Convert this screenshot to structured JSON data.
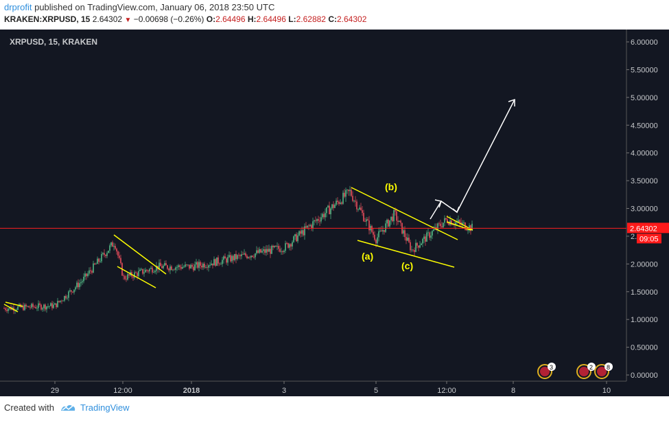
{
  "header": {
    "author": "drprofit",
    "published_text": "published on TradingView.com, January 06, 2018 23:50 UTC",
    "symbol": "KRAKEN:XRPUSD, 15",
    "last": "2.64302",
    "change": "−0.00698 (−0.26%)",
    "o_label": "O:",
    "o": "2.64496",
    "h_label": "H:",
    "h": "2.64496",
    "l_label": "L:",
    "l": "2.62882",
    "c_label": "C:",
    "c": "2.64302"
  },
  "chart_data": {
    "type": "candlestick",
    "title": "XRPUSD, 15, KRAKEN",
    "y_ticks": [
      "6.00000",
      "5.50000",
      "5.00000",
      "4.50000",
      "4.00000",
      "3.50000",
      "3.00000",
      "2.50000",
      "2.00000",
      "1.50000",
      "1.00000",
      "0.50000",
      "0.00000"
    ],
    "ylim": [
      0,
      6
    ],
    "x_ticks": [
      "29",
      "12:00",
      "2018",
      "3",
      "5",
      "12:00",
      "8",
      "10"
    ],
    "current_price_label": "2.64302",
    "countdown_label": "09:05",
    "annotations": [
      "(a)",
      "(b)",
      "(c)"
    ],
    "approx_price_path": [
      {
        "x": "28 Dec",
        "y": 1.2
      },
      {
        "x": "29 Dec",
        "y": 1.25
      },
      {
        "x": "30 Dec",
        "y": 1.7
      },
      {
        "x": "30 Dec 12:00",
        "y": 2.4
      },
      {
        "x": "31 Dec",
        "y": 1.75
      },
      {
        "x": "1 Jan",
        "y": 1.95
      },
      {
        "x": "2 Jan",
        "y": 1.95
      },
      {
        "x": "3 Jan",
        "y": 2.3
      },
      {
        "x": "4 Jan",
        "y": 3.3
      },
      {
        "x": "5 Jan",
        "y": 2.45
      },
      {
        "x": "5 Jan 12:00",
        "y": 2.9
      },
      {
        "x": "6 Jan",
        "y": 2.25
      },
      {
        "x": "6 Jan 12:00",
        "y": 2.8
      },
      {
        "x": "7 Jan",
        "y": 2.64302
      }
    ],
    "event_badges": [
      "3",
      "2",
      "8"
    ],
    "colors": {
      "up": "#53b987",
      "down": "#eb4d5c",
      "background": "#131722",
      "price_line": "#ff0000",
      "trendline": "#ffff00",
      "projection": "#ffffff"
    }
  },
  "footer": {
    "created_with": "Created with",
    "brand": "TradingView"
  }
}
